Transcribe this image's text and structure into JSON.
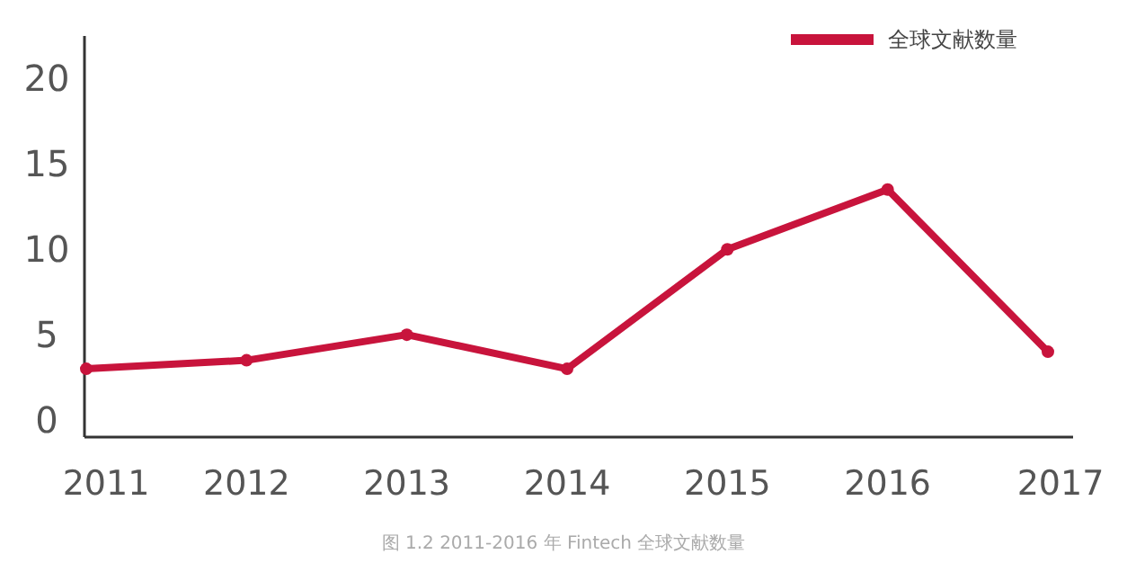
{
  "chart_data": {
    "type": "line",
    "categories": [
      "2011",
      "2012",
      "2013",
      "2014",
      "2015",
      "2016",
      "2017"
    ],
    "series": [
      {
        "name": "全球文献数量",
        "color": "#c8143c",
        "values": [
          3,
          3.5,
          5,
          3,
          10,
          13.5,
          4
        ]
      }
    ],
    "ylim": [
      -1,
      22.5
    ],
    "yticks": [
      0,
      5,
      10,
      15,
      20
    ],
    "grid": false,
    "legend": "top right",
    "marker": "circle",
    "line_style": "solid",
    "annotations": [
      "图 1.2 2011-2016 年 Fintech 全球文献数量"
    ]
  }
}
